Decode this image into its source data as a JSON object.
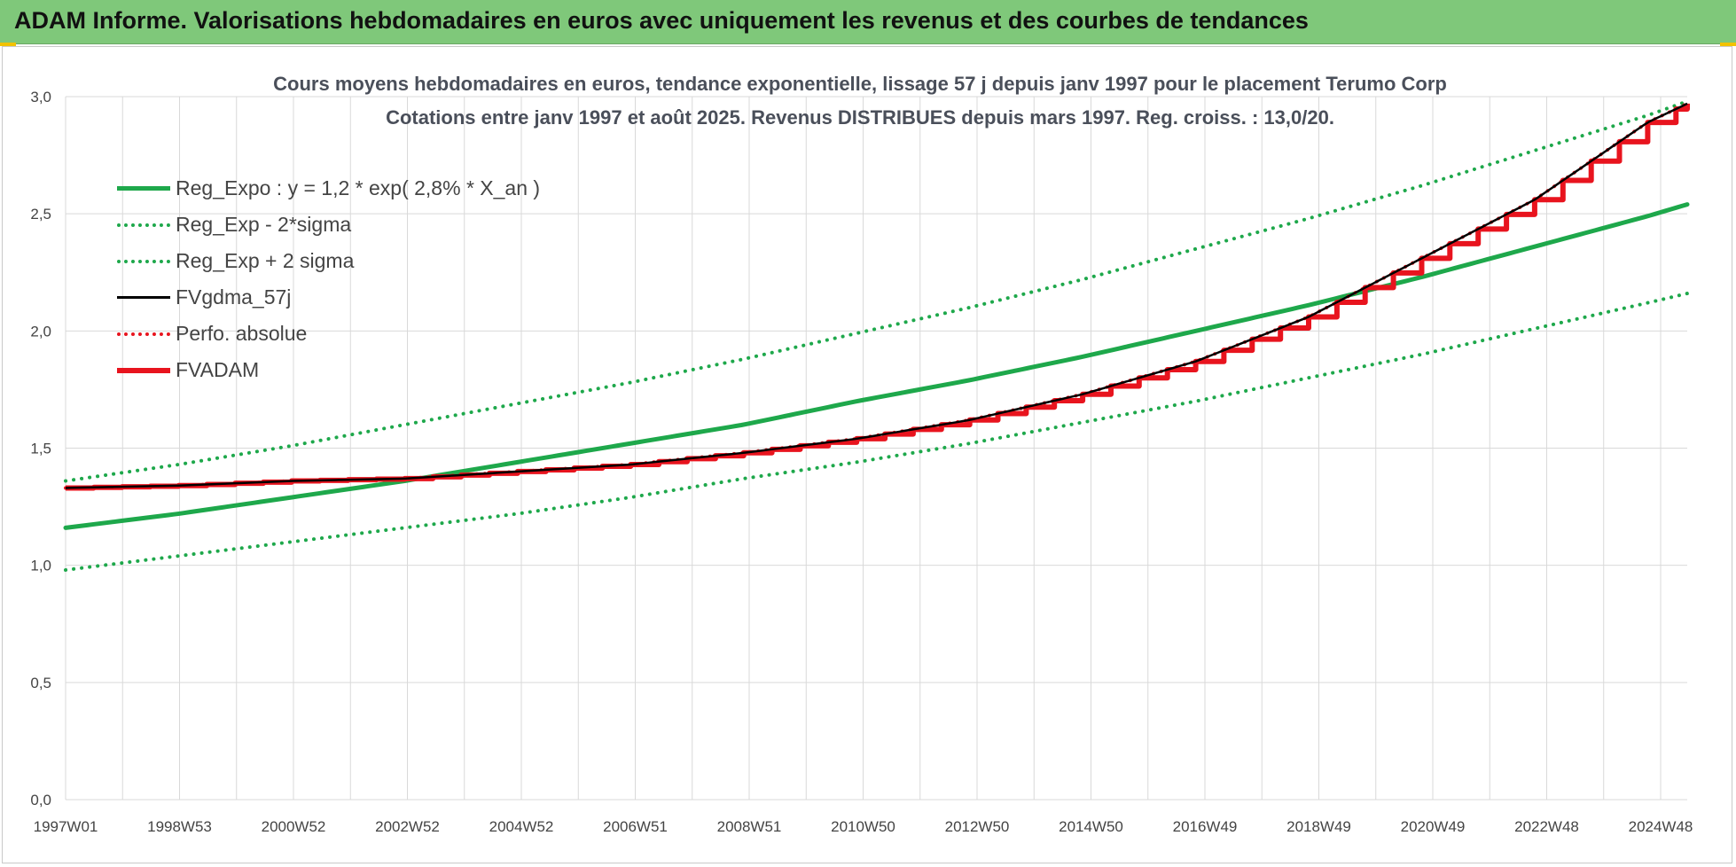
{
  "header": {
    "title": "ADAM Informe. Valorisations hebdomadaires en euros avec uniquement les revenus et des courbes de tendances"
  },
  "colors": {
    "header_bg": "#7fc87a",
    "green": "#1ea84b",
    "black": "#000000",
    "red": "#e8141e",
    "grid": "#d9d9d9"
  },
  "chart_data": {
    "type": "line",
    "title": "Cours moyens hebdomadaires en euros, tendance exponentielle, lissage 57 j depuis janv 1997 pour le placement Terumo Corp",
    "subtitle": "Cotations entre janv 1997 et août 2025. Revenus DISTRIBUES depuis mars 1997. Reg. croiss. : 13,0/20.",
    "xlabel": "",
    "ylabel": "",
    "ylim": [
      0,
      3
    ],
    "yticks": [
      "0,0",
      "0,5",
      "1,0",
      "1,5",
      "2,0",
      "2,5",
      "3,0"
    ],
    "x_tick_labels": [
      "1997W01",
      "1998W53",
      "2000W52",
      "2002W52",
      "2004W52",
      "2006W51",
      "2008W51",
      "2010W50",
      "2012W50",
      "2014W50",
      "2016W49",
      "2018W49",
      "2020W49",
      "2022W48",
      "2024W48"
    ],
    "x": [
      1997.0,
      1999.0,
      2001.0,
      2003.0,
      2005.0,
      2007.0,
      2009.0,
      2011.0,
      2013.0,
      2015.0,
      2017.0,
      2019.0,
      2021.0,
      2023.0,
      2025.0,
      2025.7
    ],
    "grid": true,
    "legend_position": "top-left",
    "series": [
      {
        "name": "Reg_Expo : y = 1,2 * exp( 2,8% *  X_an )",
        "style": "solid-thick",
        "color": "#1ea84b",
        "values": [
          1.16,
          1.22,
          1.29,
          1.36,
          1.44,
          1.52,
          1.6,
          1.7,
          1.79,
          1.89,
          2.0,
          2.11,
          2.23,
          2.36,
          2.49,
          2.54
        ]
      },
      {
        "name": "Reg_Exp - 2*sigma",
        "style": "dotted",
        "color": "#1ea84b",
        "values": [
          0.98,
          1.04,
          1.1,
          1.16,
          1.22,
          1.29,
          1.37,
          1.44,
          1.52,
          1.61,
          1.7,
          1.8,
          1.9,
          2.01,
          2.12,
          2.16
        ]
      },
      {
        "name": "Reg_Exp + 2 sigma",
        "style": "dotted",
        "color": "#1ea84b",
        "values": [
          1.36,
          1.43,
          1.51,
          1.6,
          1.69,
          1.78,
          1.88,
          1.99,
          2.1,
          2.22,
          2.35,
          2.48,
          2.62,
          2.77,
          2.92,
          2.98
        ]
      },
      {
        "name": "FVgdma_57j",
        "style": "solid",
        "color": "#000000",
        "values": [
          1.33,
          1.34,
          1.36,
          1.37,
          1.4,
          1.43,
          1.48,
          1.54,
          1.62,
          1.73,
          1.87,
          2.06,
          2.31,
          2.56,
          2.89,
          2.97
        ]
      },
      {
        "name": "Perfo. absolue",
        "style": "dotted",
        "color": "#e8141e",
        "values": [
          1.33,
          1.34,
          1.36,
          1.37,
          1.4,
          1.43,
          1.48,
          1.54,
          1.62,
          1.73,
          1.87,
          2.06,
          2.31,
          2.56,
          2.89,
          2.97
        ]
      },
      {
        "name": "FVADAM",
        "style": "step-thick",
        "color": "#e8141e",
        "values": [
          1.33,
          1.34,
          1.36,
          1.37,
          1.4,
          1.43,
          1.48,
          1.54,
          1.62,
          1.73,
          1.87,
          2.06,
          2.31,
          2.56,
          2.89,
          2.97
        ]
      }
    ]
  }
}
